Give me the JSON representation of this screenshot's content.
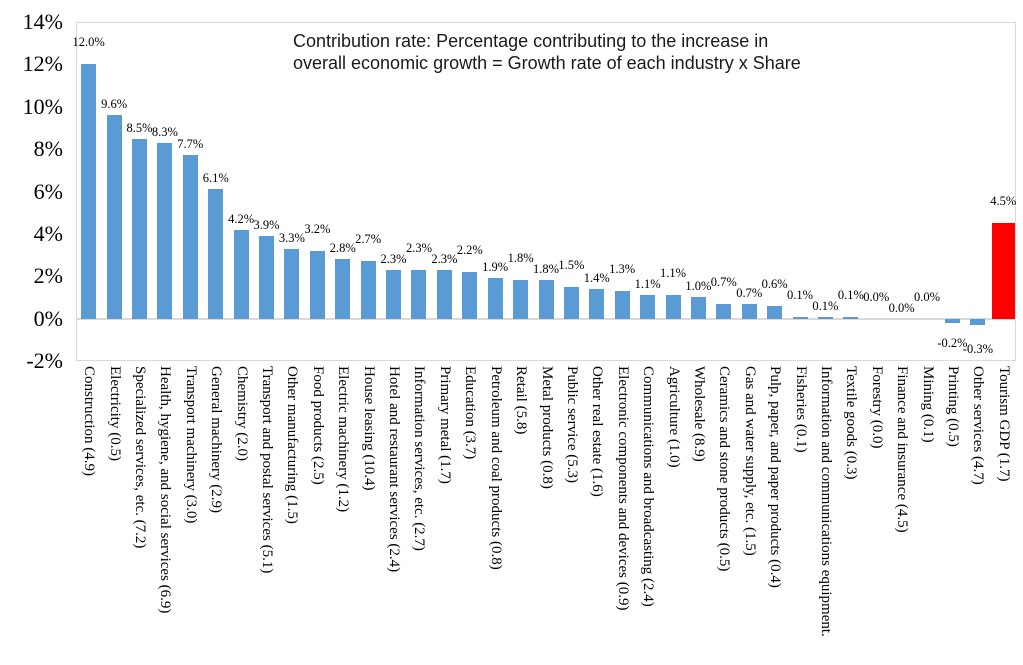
{
  "annotation": {
    "line1": "Contribution rate: Percentage contributing to the increase in",
    "line2": "overall economic growth = Growth rate of each industry x Share"
  },
  "colors": {
    "bar": "#5b9bd5",
    "highlight": "#ff0000",
    "axis": "#d9d9d9",
    "text": "#000000"
  },
  "chart_data": {
    "type": "bar",
    "title": "Contribution rate: Percentage contributing to the increase in overall economic growth = Growth rate of each industry x Share",
    "xlabel": "",
    "ylabel": "",
    "ylim": [
      -2,
      14
    ],
    "grid": false,
    "legend": false,
    "ytick_values": [
      14,
      12,
      10,
      8,
      6,
      4,
      2,
      0,
      -2
    ],
    "ytick_labels": [
      "14%",
      "12%",
      "10%",
      "8%",
      "6%",
      "4%",
      "2%",
      "0%",
      "-2%"
    ],
    "categories": [
      "Construction (4.9)",
      "Electricity (0.5)",
      "Specialized services, etc. (7.2)",
      "Health, hygiene, and social services (6.9)",
      "Transport machinery (3.0)",
      "General machinery (2.9)",
      "Chemistry (2.0)",
      "Transport and postal services (5.1)",
      "Other manufacturing (1.5)",
      "Food products (2.5)",
      "Electric machinery (1.2)",
      "House leasing (10.4)",
      "Hotel and restaurant services (2.4)",
      "Information services, etc. (2.7)",
      "Primary metal (1.7)",
      "Education (3.7)",
      "Petroleum and coal products (0.8)",
      "Retail (5.8)",
      "Metal products (0.8)",
      "Public service (5.3)",
      "Other real estate (1.6)",
      "Electronic components and devices (0.9)",
      "Communications and broadcasting (2.4)",
      "Agriculture (1.0)",
      "Wholesale (8.9)",
      "Ceramics and stone products (0.5)",
      "Gas and water supply, etc. (1.5)",
      "Pulp, paper, and paper products (0.4)",
      "Fisheries (0.1)",
      "Information and communications equipment.",
      "Textile goods (0.3)",
      "Forestry (0.0)",
      "Finance and insurance (4.5)",
      "Mining (0.1)",
      "Printing (0.5)",
      "Other services (4.7)",
      "Tourism GDP (1.7)"
    ],
    "values": [
      12.0,
      9.6,
      8.5,
      8.3,
      7.7,
      6.1,
      4.2,
      3.9,
      3.3,
      3.2,
      2.8,
      2.7,
      2.3,
      2.3,
      2.3,
      2.2,
      1.9,
      1.8,
      1.8,
      1.5,
      1.4,
      1.3,
      1.1,
      1.1,
      1.0,
      0.7,
      0.7,
      0.6,
      0.1,
      0.1,
      0.1,
      0.0,
      0.0,
      0.0,
      -0.2,
      -0.3,
      4.5
    ],
    "value_labels": [
      "12.0%",
      "9.6%",
      "8.5%",
      "8.3%",
      "7.7%",
      "6.1%",
      "4.2%",
      "3.9%",
      "3.3%",
      "3.2%",
      "2.8%",
      "2.7%",
      "2.3%",
      "2.3%",
      "2.3%",
      "2.2%",
      "1.9%",
      "1.8%",
      "1.8%",
      "1.5%",
      "1.4%",
      "1.3%",
      "1.1%",
      "1.1%",
      "1.0%",
      "0.7%",
      "0.7%",
      "0.6%",
      "0.1%",
      "0.1%",
      "0.1%",
      "0.0%",
      "0.0%",
      "0.0%",
      "-0.2%",
      "-0.3%",
      "4.5%"
    ],
    "highlight_index": 36,
    "label_stagger": [
      1,
      0,
      0,
      0,
      0,
      0,
      0,
      0,
      0,
      1,
      0,
      1,
      0,
      1,
      0,
      1,
      0,
      1,
      0,
      1,
      0,
      1,
      0,
      1,
      0,
      1,
      0,
      1,
      1,
      0,
      1,
      1,
      0,
      1,
      0,
      1,
      1
    ]
  }
}
